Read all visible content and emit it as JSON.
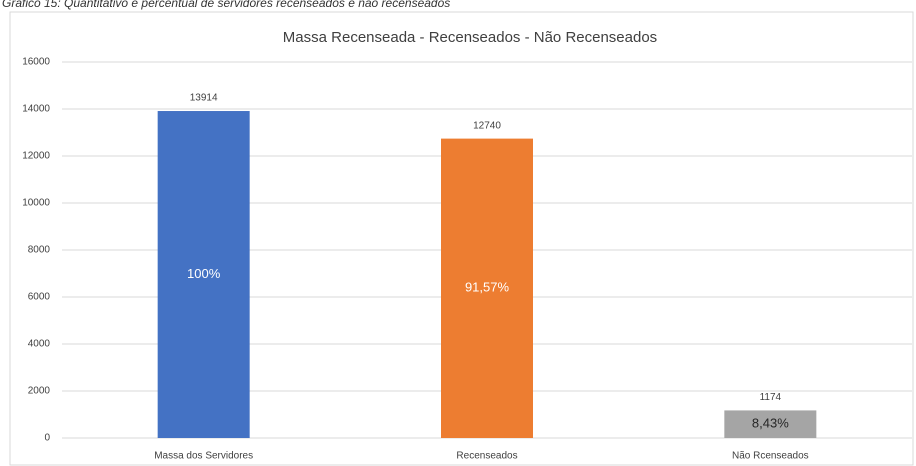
{
  "caption": "Gráfico 15: Quantitativo e percentual de servidores recenseados e não recenseados",
  "chart_data": {
    "type": "bar",
    "title": "Massa Recenseada - Recenseados - Não Recenseados",
    "categories": [
      "Massa dos Servidores",
      "Recenseados",
      "Não Rcenseados"
    ],
    "values": [
      13914,
      12740,
      1174
    ],
    "inner_labels": [
      "100%",
      "91,57%",
      "8,43%"
    ],
    "colors": [
      "#4472c4",
      "#ed7d31",
      "#a5a5a5"
    ],
    "ylim": [
      0,
      16000
    ],
    "yticks": [
      0,
      2000,
      4000,
      6000,
      8000,
      10000,
      12000,
      14000,
      16000
    ],
    "grid": true
  }
}
